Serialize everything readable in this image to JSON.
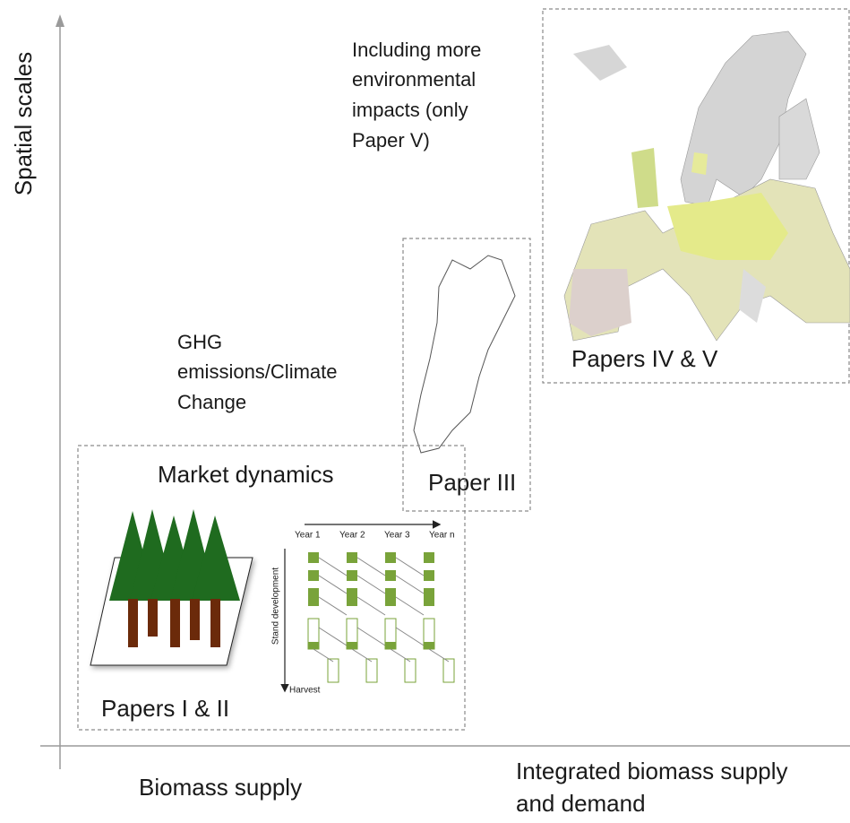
{
  "axes": {
    "y_label": "Spatial scales",
    "x_left": "Biomass supply",
    "x_right": [
      "Integrated biomass supply",
      "and demand"
    ]
  },
  "annotations": {
    "environmental": [
      "Including  more",
      "environmental",
      "impacts (only",
      "Paper V)"
    ],
    "ghg": [
      "GHG",
      "emissions/Climate",
      "Change"
    ]
  },
  "boxes": {
    "local": {
      "title": "Market dynamics",
      "label": "Papers I & II"
    },
    "national": {
      "label": "Paper III"
    },
    "europe": {
      "label": "Papers IV & V"
    }
  },
  "stand_diagram": {
    "years": [
      "Year 1",
      "Year 2",
      "Year 3",
      "Year n"
    ],
    "y_label": "Stand development",
    "end_label": "Harvest"
  }
}
